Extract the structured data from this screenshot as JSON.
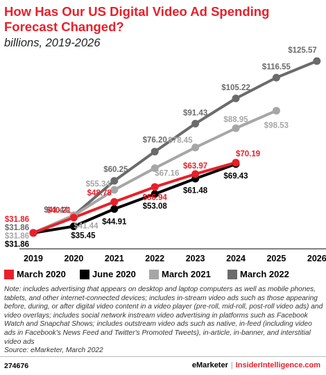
{
  "title": "How Has Our US Digital Video Ad Spending Forecast Changed?",
  "subtitle": "billions, 2019-2026",
  "note": "Note: includes advertising that appears on desktop and laptop computers as well as mobile phones, tablets, and other internet-connected devices; includes in-stream video ads such as those appearing before, during, or after digital video content in a video player (pre-roll, mid-roll, post-roll video ads) and video overlays; includes social network instream video advertising in platforms such as Facebook Watch and Snapchat Shows; includes outstream video ads such as native, in-feed (including video ads in Facebook's News Feed and Twitter's Promoted Tweets), in-article, in-banner, and interstitial video ads",
  "source": "Source: eMarketer, March 2022",
  "footer": {
    "id": "274676",
    "brand_a": "eMarketer",
    "separator": "|",
    "brand_b": "InsiderIntelligence.com"
  },
  "chart_data": {
    "type": "line",
    "x": [
      "2019",
      "2020",
      "2021",
      "2022",
      "2023",
      "2024",
      "2025",
      "2026"
    ],
    "series": [
      {
        "name": "March 2020",
        "color": "#e8202a",
        "values": [
          31.86,
          40.21,
          48.78,
          56.94,
          63.97,
          70.19,
          null,
          null
        ],
        "labels": [
          "$31.86",
          "$40.21",
          "$48.78",
          "$56.94",
          "$63.97",
          "$70.19",
          null,
          null
        ]
      },
      {
        "name": "June 2020",
        "color": "#000000",
        "values": [
          31.86,
          35.45,
          44.91,
          53.08,
          61.48,
          69.43,
          null,
          null
        ],
        "labels": [
          "$31.86",
          "$35.45",
          "$44.91",
          "$53.08",
          "$61.48",
          "$69.43",
          null,
          null
        ]
      },
      {
        "name": "March 2021",
        "color": "#a6a6a6",
        "values": [
          31.86,
          41.44,
          55.34,
          67.16,
          78.45,
          88.95,
          98.53,
          null
        ],
        "labels": [
          "$31.86",
          "$41.44",
          "$55.34",
          "$67.16",
          "$78.45",
          "$88.95",
          "$98.53",
          null
        ]
      },
      {
        "name": "March 2022",
        "color": "#6b6b6b",
        "values": [
          31.86,
          41.44,
          60.25,
          76.2,
          91.43,
          105.22,
          116.55,
          125.57
        ],
        "labels": [
          "$31.86",
          "$41.44",
          "$60.25",
          "$76.20",
          "$91.43",
          "$105.22",
          "$116.55",
          "$125.57"
        ]
      }
    ],
    "ylim": [
      28,
      130
    ],
    "grid": false,
    "legend": "bottom"
  }
}
